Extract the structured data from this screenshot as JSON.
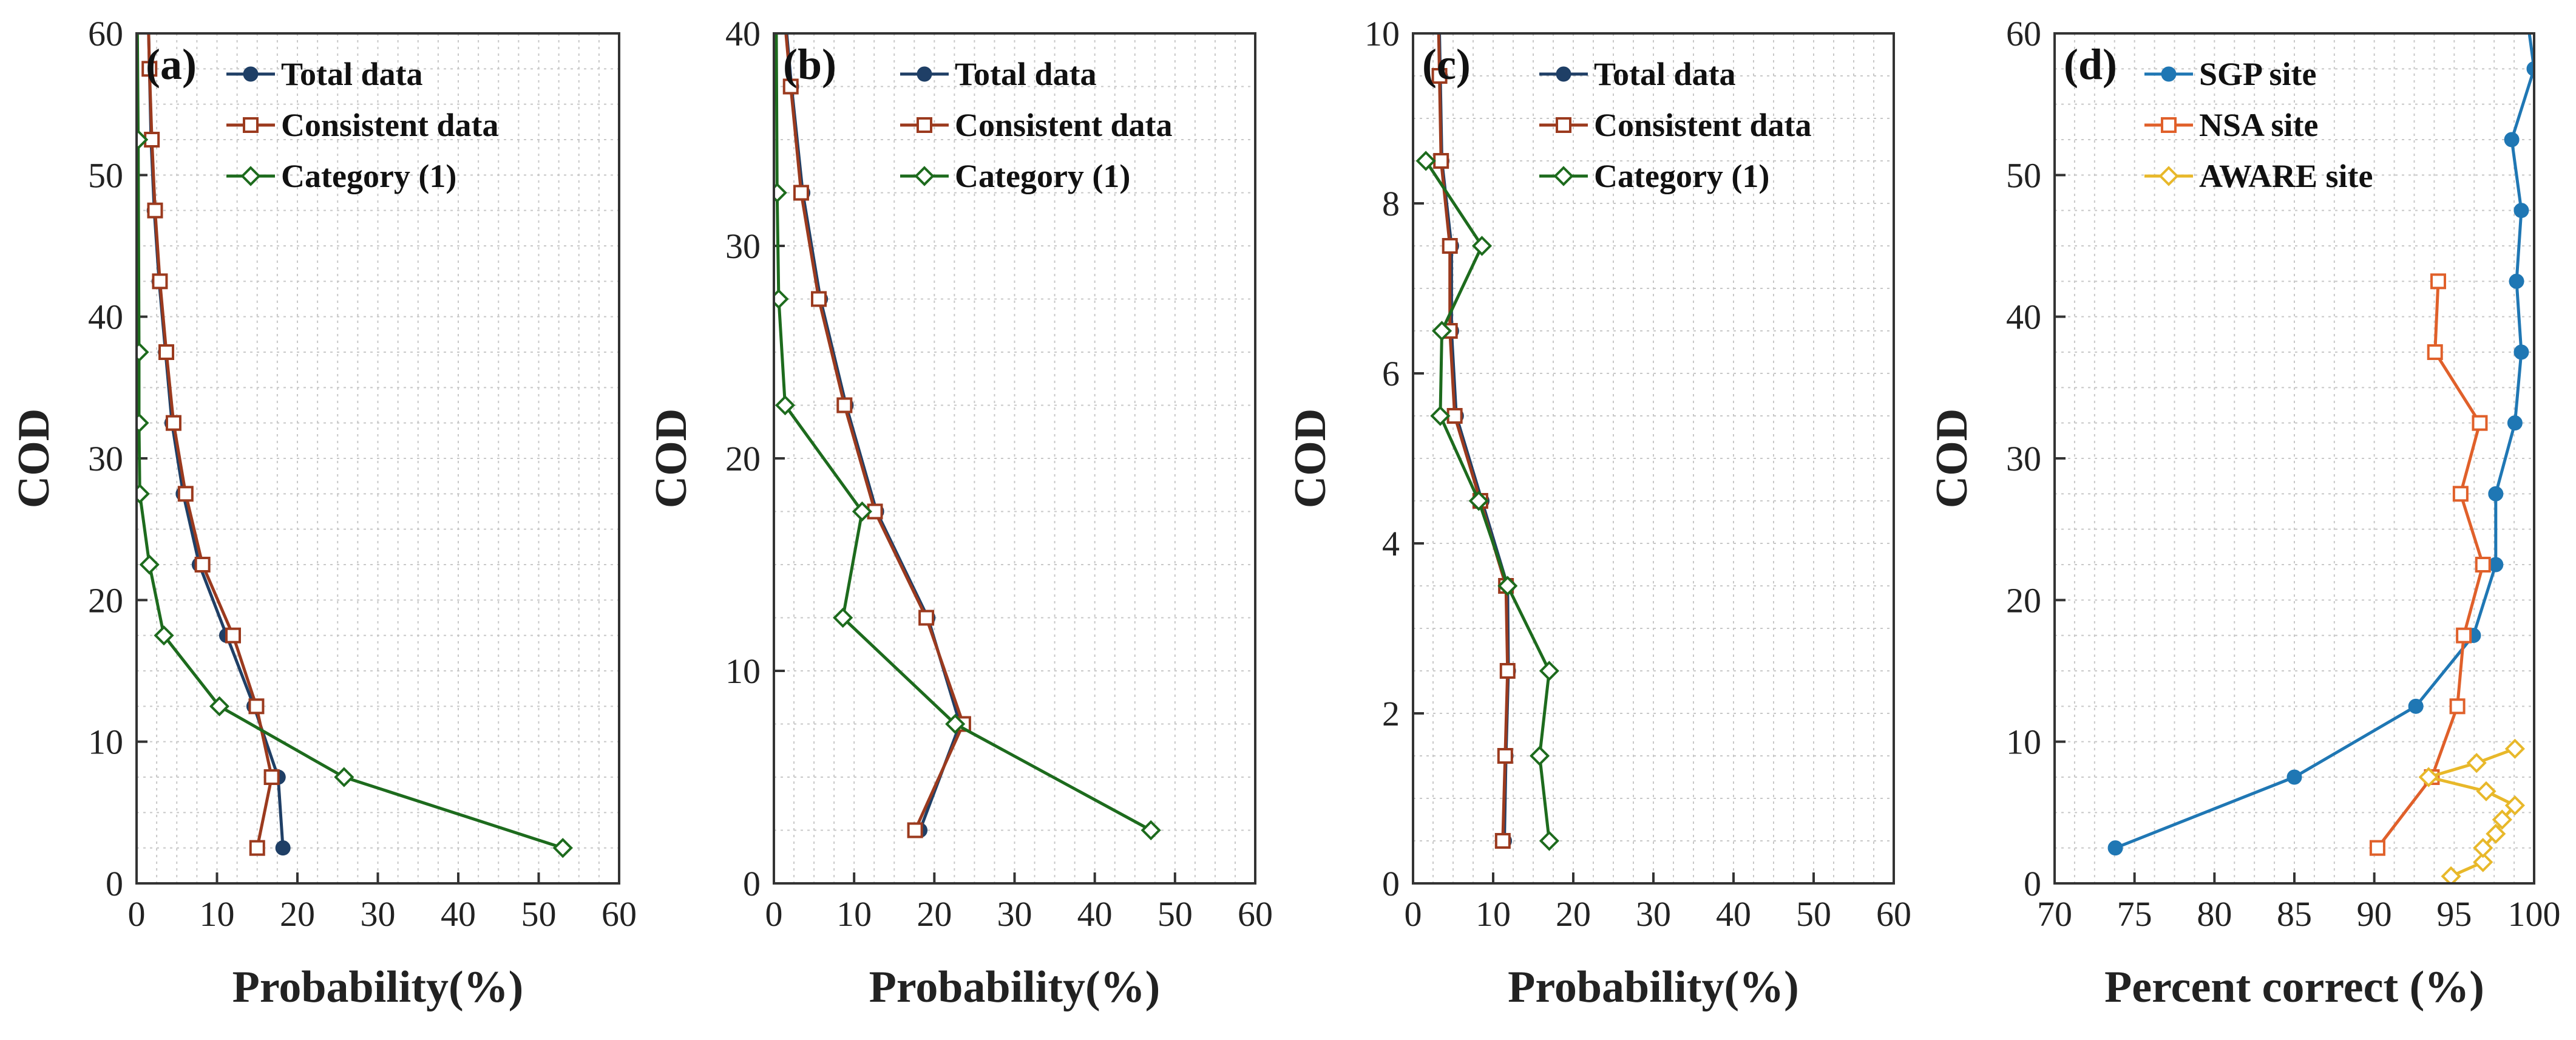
{
  "chart_data": [
    {
      "type": "line",
      "panel_label": "(a)",
      "xlabel": "Probability(%)",
      "ylabel": "COD",
      "xlim": [
        0,
        60
      ],
      "ylim": [
        0,
        60
      ],
      "xticks": [
        0,
        10,
        20,
        30,
        40,
        50,
        60
      ],
      "yticks": [
        0,
        10,
        20,
        30,
        40,
        50,
        60
      ],
      "grid": true,
      "legend_position": "top-right",
      "series": [
        {
          "name": "Total data",
          "color": "#1f3f66",
          "marker": "circle",
          "points": [
            [
              18.2,
              2.5
            ],
            [
              17.6,
              7.5
            ],
            [
              14.6,
              12.5
            ],
            [
              11.2,
              17.5
            ],
            [
              7.8,
              22.5
            ],
            [
              5.8,
              27.5
            ],
            [
              4.4,
              32.5
            ],
            [
              3.6,
              37.5
            ],
            [
              2.8,
              42.5
            ],
            [
              2.2,
              47.5
            ],
            [
              1.8,
              52.5
            ],
            [
              1.6,
              57.5
            ],
            [
              1.5,
              60
            ]
          ]
        },
        {
          "name": "Consistent data",
          "color": "#9b3a1e",
          "marker": "square",
          "points": [
            [
              15.0,
              2.5
            ],
            [
              16.8,
              7.5
            ],
            [
              14.9,
              12.5
            ],
            [
              12.0,
              17.5
            ],
            [
              8.2,
              22.5
            ],
            [
              6.1,
              27.5
            ],
            [
              4.6,
              32.5
            ],
            [
              3.7,
              37.5
            ],
            [
              2.9,
              42.5
            ],
            [
              2.3,
              47.5
            ],
            [
              1.9,
              52.5
            ],
            [
              1.6,
              57.5
            ],
            [
              1.5,
              60
            ]
          ]
        },
        {
          "name": "Category (1)",
          "color": "#1d6b1d",
          "marker": "diamond",
          "points": [
            [
              53.0,
              2.5
            ],
            [
              25.8,
              7.5
            ],
            [
              10.3,
              12.5
            ],
            [
              3.4,
              17.5
            ],
            [
              1.6,
              22.5
            ],
            [
              0.4,
              27.5
            ],
            [
              0.3,
              32.5
            ],
            [
              0.3,
              37.5
            ],
            [
              0.2,
              52.5
            ],
            [
              0.1,
              60
            ]
          ]
        }
      ]
    },
    {
      "type": "line",
      "panel_label": "(b)",
      "xlabel": "Probability(%)",
      "ylabel": "COD",
      "xlim": [
        0,
        60
      ],
      "ylim": [
        0,
        40
      ],
      "xticks": [
        0,
        10,
        20,
        30,
        40,
        50,
        60
      ],
      "yticks": [
        0,
        10,
        20,
        30,
        40
      ],
      "grid": true,
      "legend_position": "top-right",
      "series": [
        {
          "name": "Total data",
          "color": "#1f3f66",
          "marker": "circle",
          "points": [
            [
              18.2,
              2.5
            ],
            [
              23.2,
              7.5
            ],
            [
              19.2,
              12.5
            ],
            [
              12.8,
              17.5
            ],
            [
              9.0,
              22.5
            ],
            [
              5.8,
              27.5
            ],
            [
              3.6,
              32.5
            ],
            [
              2.2,
              37.5
            ],
            [
              1.6,
              40
            ]
          ]
        },
        {
          "name": "Consistent data",
          "color": "#9b3a1e",
          "marker": "square",
          "points": [
            [
              17.6,
              2.5
            ],
            [
              23.6,
              7.5
            ],
            [
              19.0,
              12.5
            ],
            [
              12.6,
              17.5
            ],
            [
              8.8,
              22.5
            ],
            [
              5.6,
              27.5
            ],
            [
              3.4,
              32.5
            ],
            [
              2.1,
              37.5
            ],
            [
              1.5,
              40
            ]
          ]
        },
        {
          "name": "Category (1)",
          "color": "#1d6b1d",
          "marker": "diamond",
          "points": [
            [
              47.0,
              2.5
            ],
            [
              22.6,
              7.5
            ],
            [
              8.6,
              12.5
            ],
            [
              11.0,
              17.5
            ],
            [
              1.4,
              22.5
            ],
            [
              0.6,
              27.5
            ],
            [
              0.4,
              32.5
            ],
            [
              0.3,
              40
            ]
          ]
        }
      ]
    },
    {
      "type": "line",
      "panel_label": "(c)",
      "xlabel": "Probability(%)",
      "ylabel": "COD",
      "xlim": [
        0,
        60
      ],
      "ylim": [
        0,
        10
      ],
      "xticks": [
        0,
        10,
        20,
        30,
        40,
        50,
        60
      ],
      "yticks": [
        0,
        2,
        4,
        6,
        8,
        10
      ],
      "grid": true,
      "legend_position": "top-right",
      "series": [
        {
          "name": "Total data",
          "color": "#1f3f66",
          "marker": "circle",
          "points": [
            [
              11.4,
              0.5
            ],
            [
              11.6,
              1.5
            ],
            [
              11.9,
              2.5
            ],
            [
              11.8,
              3.5
            ],
            [
              8.6,
              4.5
            ],
            [
              5.4,
              5.5
            ],
            [
              4.8,
              6.5
            ],
            [
              4.8,
              7.5
            ],
            [
              3.6,
              8.5
            ],
            [
              3.4,
              9.5
            ],
            [
              3.3,
              10
            ]
          ]
        },
        {
          "name": "Consistent data",
          "color": "#9b3a1e",
          "marker": "square",
          "points": [
            [
              11.2,
              0.5
            ],
            [
              11.5,
              1.5
            ],
            [
              11.8,
              2.5
            ],
            [
              11.6,
              3.5
            ],
            [
              8.4,
              4.5
            ],
            [
              5.2,
              5.5
            ],
            [
              4.6,
              6.5
            ],
            [
              4.6,
              7.5
            ],
            [
              3.5,
              8.5
            ],
            [
              3.3,
              9.5
            ],
            [
              3.2,
              10
            ]
          ]
        },
        {
          "name": "Category (1)",
          "color": "#1d6b1d",
          "marker": "diamond",
          "points": [
            [
              17.0,
              0.5
            ],
            [
              15.8,
              1.5
            ],
            [
              17.0,
              2.5
            ],
            [
              11.8,
              3.5
            ],
            [
              8.2,
              4.5
            ],
            [
              3.4,
              5.5
            ],
            [
              3.6,
              6.5
            ],
            [
              8.6,
              7.5
            ],
            [
              1.6,
              8.5
            ]
          ]
        }
      ]
    },
    {
      "type": "line",
      "panel_label": "(d)",
      "xlabel": "Percent correct (%)",
      "ylabel": "COD",
      "xlim": [
        70,
        100
      ],
      "ylim": [
        0,
        60
      ],
      "xticks": [
        70,
        75,
        80,
        85,
        90,
        95,
        100
      ],
      "yticks": [
        0,
        10,
        20,
        30,
        40,
        50,
        60
      ],
      "grid": true,
      "legend_position": "top-right",
      "series": [
        {
          "name": "SGP site",
          "color": "#1f77b4",
          "marker": "circle",
          "points": [
            [
              73.8,
              2.5
            ],
            [
              85.0,
              7.5
            ],
            [
              92.6,
              12.5
            ],
            [
              96.2,
              17.5
            ],
            [
              97.6,
              22.5
            ],
            [
              97.6,
              27.5
            ],
            [
              98.8,
              32.5
            ],
            [
              99.2,
              37.5
            ],
            [
              98.9,
              42.5
            ],
            [
              99.2,
              47.5
            ],
            [
              98.6,
              52.5
            ],
            [
              100.0,
              57.5
            ],
            [
              99.7,
              60
            ]
          ]
        },
        {
          "name": "NSA site",
          "color": "#e0602a",
          "marker": "square",
          "points": [
            [
              90.2,
              2.5
            ],
            [
              93.6,
              7.5
            ],
            [
              95.2,
              12.5
            ],
            [
              95.6,
              17.5
            ],
            [
              96.8,
              22.5
            ],
            [
              95.4,
              27.5
            ],
            [
              96.6,
              32.5
            ],
            [
              93.8,
              37.5
            ],
            [
              94.0,
              42.5
            ]
          ]
        },
        {
          "name": "AWARE site",
          "color": "#e8b82a",
          "marker": "diamond",
          "points": [
            [
              94.8,
              0.5
            ],
            [
              96.8,
              1.5
            ],
            [
              96.8,
              2.5
            ],
            [
              97.6,
              3.5
            ],
            [
              98.0,
              4.5
            ],
            [
              98.8,
              5.5
            ],
            [
              97.0,
              6.5
            ],
            [
              93.4,
              7.5
            ],
            [
              96.4,
              8.5
            ],
            [
              98.8,
              9.5
            ]
          ]
        }
      ]
    }
  ]
}
